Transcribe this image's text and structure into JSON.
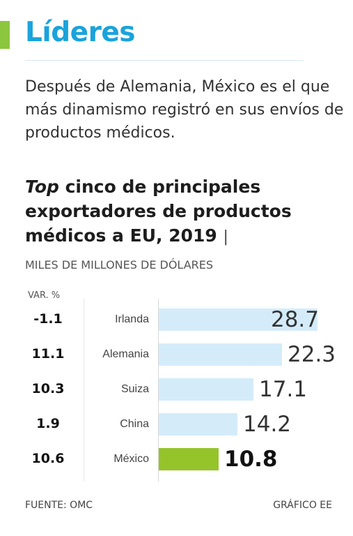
{
  "header": {
    "title": "Líderes",
    "subtitle": "Después de Alemania, México es el que más dinamismo registró en sus envíos de productos médicos.",
    "accent_color": "#8cc63f",
    "title_color": "#1aa3dc"
  },
  "chart_data": {
    "type": "bar",
    "orientation": "horizontal",
    "title_italic": "Top",
    "title_rest": " cinco de principales exportadores de productos médicos a EU, 2019",
    "title_separator": "|",
    "units": "MILES DE MILLONES DE DÓLARES",
    "var_header": "VAR. %",
    "categories": [
      "Irlanda",
      "Alemania",
      "Suiza",
      "China",
      "México"
    ],
    "values": [
      28.7,
      22.3,
      17.1,
      14.2,
      10.8
    ],
    "value_labels": [
      "28.7",
      "22.3",
      "17.1",
      "14.2",
      "10.8"
    ],
    "var_pct": [
      "-1.1",
      "11.1",
      "10.3",
      "1.9",
      "10.6"
    ],
    "highlight": "México",
    "bar_color": "#d4ecfa",
    "highlight_color": "#95c42a",
    "xlim": [
      0,
      30
    ]
  },
  "footer": {
    "source": "FUENTE: OMC",
    "credit": "GRÁFICO EE"
  }
}
